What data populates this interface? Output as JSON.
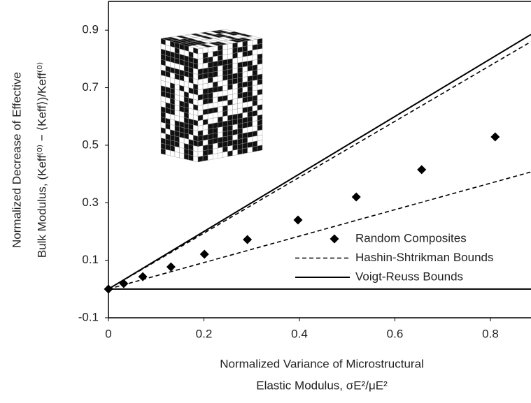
{
  "chart_data": {
    "type": "scatter",
    "xlabel": [
      "Normalized Variance of Microstructural",
      "Elastic Modulus, σE²/μE²"
    ],
    "ylabel": [
      "Normalized Decrease of Effective",
      "Bulk Modulus, (Keff⁽⁰⁾ − ⟨Keff⟩)/Keff⁽⁰⁾"
    ],
    "xlim": [
      0,
      0.885
    ],
    "ylim": [
      -0.1,
      1.0
    ],
    "xticks": [
      0,
      0.2,
      0.4,
      0.6,
      0.8
    ],
    "yticks": [
      -0.1,
      0.1,
      0.3,
      0.5,
      0.7,
      0.9
    ],
    "grid": false,
    "legend": "lower right",
    "series": [
      {
        "name": "Random Composites",
        "kind": "scatter",
        "color": "#000000",
        "x": [
          0,
          0.032,
          0.072,
          0.131,
          0.201,
          0.291,
          0.397,
          0.519,
          0.656,
          0.81
        ],
        "values": [
          0,
          0.019,
          0.043,
          0.077,
          0.121,
          0.172,
          0.24,
          0.32,
          0.415,
          0.529
        ]
      },
      {
        "name": "Hashin-Shtrikman Bounds",
        "kind": "dashed",
        "color": "#000000",
        "lines": [
          {
            "x": [
              0,
              0.885
            ],
            "values": [
              0,
              0.86
            ]
          },
          {
            "x": [
              0,
              0.885
            ],
            "values": [
              0,
              0.407
            ]
          }
        ]
      },
      {
        "name": "Voigt-Reuss Bounds",
        "kind": "solid",
        "color": "#000000",
        "lines": [
          {
            "x": [
              0,
              0.885
            ],
            "values": [
              0,
              0.885
            ]
          },
          {
            "x": [
              0,
              0.885
            ],
            "values": [
              0,
              0
            ]
          }
        ]
      }
    ]
  }
}
